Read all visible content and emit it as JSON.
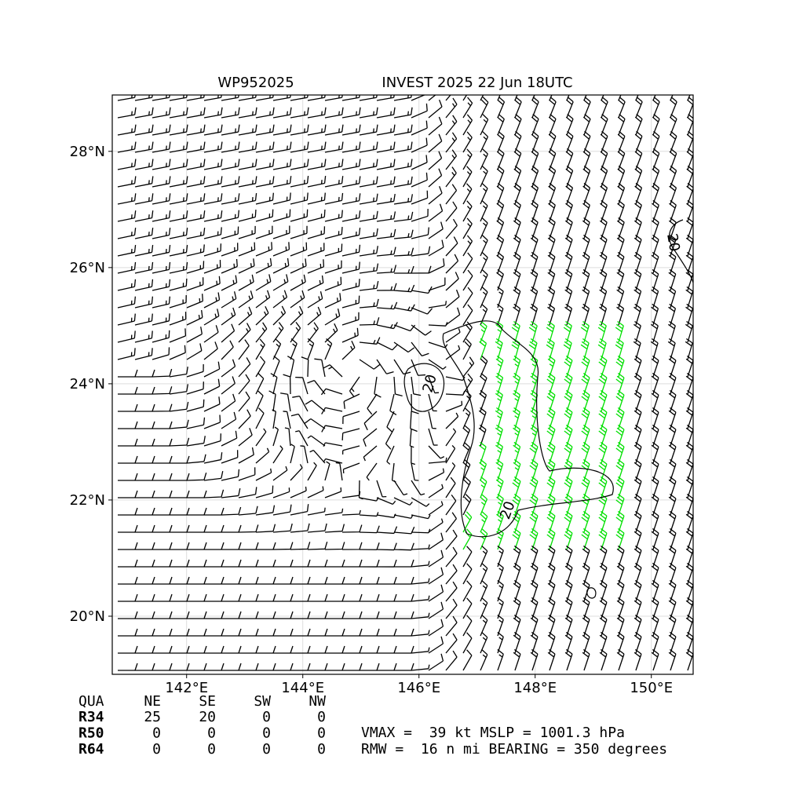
{
  "map": {
    "title_left": "WP952025",
    "title_right": "INVEST 2025 22 Jun 18UTC",
    "xlim": [
      140.72,
      150.72
    ],
    "ylim": [
      19.0,
      28.97
    ],
    "xticks": [
      {
        "value": 142,
        "label": "142°E"
      },
      {
        "value": 144,
        "label": "144°E"
      },
      {
        "value": 146,
        "label": "146°E"
      },
      {
        "value": 148,
        "label": "148°E"
      },
      {
        "value": 150,
        "label": "150°E"
      }
    ],
    "yticks": [
      {
        "value": 20,
        "label": "20°N"
      },
      {
        "value": 22,
        "label": "22°N"
      },
      {
        "value": 24,
        "label": "24°N"
      },
      {
        "value": 26,
        "label": "26°N"
      },
      {
        "value": 28,
        "label": "28°N"
      }
    ],
    "contour_labels": [
      "20",
      "20",
      "20"
    ]
  },
  "table": {
    "header": [
      "QUA",
      "NE",
      "SE",
      "SW",
      "NW"
    ],
    "rows": [
      [
        "R34",
        "25",
        "20",
        "0",
        "0"
      ],
      [
        "R50",
        "0",
        "0",
        "0",
        "0"
      ],
      [
        "R64",
        "0",
        "0",
        "0",
        "0"
      ]
    ]
  },
  "info": [
    "VMAX =  39 kt MSLP = 1001.3 hPa",
    "RMW =  16 n mi BEARING = 350 degrees"
  ]
}
